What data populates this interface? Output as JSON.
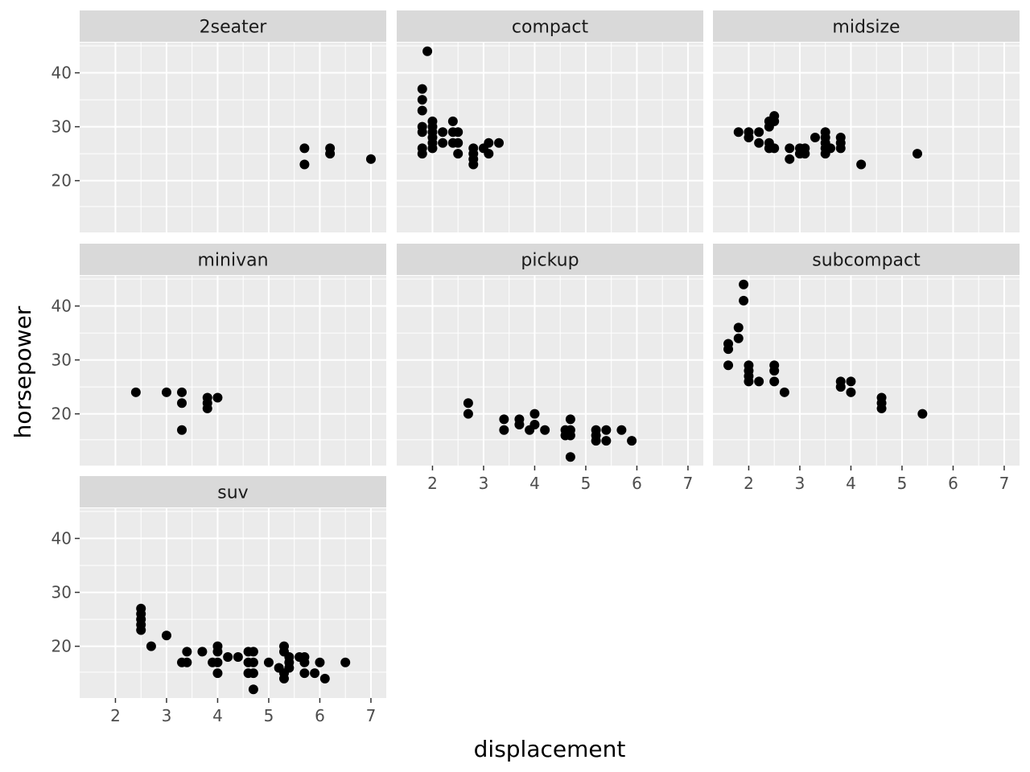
{
  "chart_data": {
    "type": "scatter",
    "facet_by": "class",
    "xlabel": "displacement",
    "ylabel": "horsepower",
    "xlim": [
      1.3,
      7.3
    ],
    "ylim": [
      10.4,
      45.6
    ],
    "x_ticks": [
      2,
      3,
      4,
      5,
      6,
      7
    ],
    "y_ticks": [
      20,
      30,
      40
    ],
    "grid": true,
    "colors": {
      "panel_bg": "#ebebeb",
      "strip_bg": "#d9d9d9",
      "grid": "#ffffff",
      "point": "#000000"
    },
    "panels": [
      {
        "name": "2seater",
        "points": [
          [
            5.7,
            26
          ],
          [
            5.7,
            23
          ],
          [
            6.2,
            26
          ],
          [
            6.2,
            25
          ],
          [
            7.0,
            24
          ]
        ]
      },
      {
        "name": "compact",
        "points": [
          [
            1.9,
            44
          ],
          [
            1.8,
            37
          ],
          [
            1.8,
            35
          ],
          [
            1.8,
            33
          ],
          [
            1.8,
            30
          ],
          [
            1.8,
            29
          ],
          [
            1.8,
            26
          ],
          [
            1.8,
            25
          ],
          [
            2.0,
            31
          ],
          [
            2.0,
            30
          ],
          [
            2.0,
            29
          ],
          [
            2.0,
            28
          ],
          [
            2.0,
            27
          ],
          [
            2.0,
            26
          ],
          [
            2.2,
            29
          ],
          [
            2.2,
            27
          ],
          [
            2.4,
            31
          ],
          [
            2.4,
            29
          ],
          [
            2.4,
            27
          ],
          [
            2.5,
            29
          ],
          [
            2.5,
            27
          ],
          [
            2.5,
            25
          ],
          [
            2.8,
            26
          ],
          [
            2.8,
            25
          ],
          [
            2.8,
            24
          ],
          [
            2.8,
            23
          ],
          [
            3.0,
            26
          ],
          [
            3.1,
            27
          ],
          [
            3.1,
            25
          ],
          [
            3.3,
            27
          ]
        ]
      },
      {
        "name": "midsize",
        "points": [
          [
            1.8,
            29
          ],
          [
            2.0,
            29
          ],
          [
            2.0,
            28
          ],
          [
            2.2,
            29
          ],
          [
            2.2,
            27
          ],
          [
            2.4,
            31
          ],
          [
            2.4,
            30
          ],
          [
            2.4,
            27
          ],
          [
            2.4,
            26
          ],
          [
            2.5,
            32
          ],
          [
            2.5,
            31
          ],
          [
            2.5,
            26
          ],
          [
            2.8,
            26
          ],
          [
            2.8,
            24
          ],
          [
            3.0,
            26
          ],
          [
            3.0,
            25
          ],
          [
            3.1,
            26
          ],
          [
            3.1,
            25
          ],
          [
            3.3,
            28
          ],
          [
            3.5,
            29
          ],
          [
            3.5,
            28
          ],
          [
            3.5,
            27
          ],
          [
            3.5,
            26
          ],
          [
            3.5,
            25
          ],
          [
            3.6,
            26
          ],
          [
            3.8,
            28
          ],
          [
            3.8,
            27
          ],
          [
            3.8,
            26
          ],
          [
            4.2,
            23
          ],
          [
            5.3,
            25
          ]
        ]
      },
      {
        "name": "minivan",
        "points": [
          [
            2.4,
            24
          ],
          [
            3.0,
            24
          ],
          [
            3.3,
            24
          ],
          [
            3.3,
            22
          ],
          [
            3.3,
            17
          ],
          [
            3.8,
            23
          ],
          [
            3.8,
            22
          ],
          [
            3.8,
            21
          ],
          [
            4.0,
            23
          ]
        ]
      },
      {
        "name": "pickup",
        "points": [
          [
            2.7,
            22
          ],
          [
            2.7,
            20
          ],
          [
            3.4,
            19
          ],
          [
            3.4,
            17
          ],
          [
            3.7,
            19
          ],
          [
            3.7,
            18
          ],
          [
            3.9,
            17
          ],
          [
            4.0,
            20
          ],
          [
            4.0,
            18
          ],
          [
            4.2,
            17
          ],
          [
            4.6,
            17
          ],
          [
            4.6,
            16
          ],
          [
            4.7,
            19
          ],
          [
            4.7,
            17
          ],
          [
            4.7,
            16
          ],
          [
            4.7,
            12
          ],
          [
            5.2,
            17
          ],
          [
            5.2,
            16
          ],
          [
            5.2,
            15
          ],
          [
            5.4,
            17
          ],
          [
            5.4,
            15
          ],
          [
            5.7,
            17
          ],
          [
            5.9,
            15
          ]
        ]
      },
      {
        "name": "subcompact",
        "points": [
          [
            1.6,
            33
          ],
          [
            1.6,
            32
          ],
          [
            1.6,
            29
          ],
          [
            1.8,
            36
          ],
          [
            1.8,
            34
          ],
          [
            1.9,
            44
          ],
          [
            1.9,
            41
          ],
          [
            2.0,
            29
          ],
          [
            2.0,
            28
          ],
          [
            2.0,
            27
          ],
          [
            2.0,
            26
          ],
          [
            2.2,
            26
          ],
          [
            2.5,
            29
          ],
          [
            2.5,
            28
          ],
          [
            2.5,
            26
          ],
          [
            2.7,
            24
          ],
          [
            3.8,
            26
          ],
          [
            3.8,
            25
          ],
          [
            4.0,
            26
          ],
          [
            4.0,
            24
          ],
          [
            4.6,
            23
          ],
          [
            4.6,
            22
          ],
          [
            4.6,
            21
          ],
          [
            5.4,
            20
          ]
        ]
      },
      {
        "name": "suv",
        "points": [
          [
            2.5,
            27
          ],
          [
            2.5,
            26
          ],
          [
            2.5,
            25
          ],
          [
            2.5,
            24
          ],
          [
            2.5,
            23
          ],
          [
            2.7,
            20
          ],
          [
            3.0,
            22
          ],
          [
            3.3,
            17
          ],
          [
            3.4,
            19
          ],
          [
            3.4,
            17
          ],
          [
            3.7,
            19
          ],
          [
            3.9,
            17
          ],
          [
            4.0,
            20
          ],
          [
            4.0,
            19
          ],
          [
            4.0,
            17
          ],
          [
            4.0,
            15
          ],
          [
            4.2,
            18
          ],
          [
            4.4,
            18
          ],
          [
            4.6,
            19
          ],
          [
            4.6,
            17
          ],
          [
            4.6,
            15
          ],
          [
            4.7,
            19
          ],
          [
            4.7,
            17
          ],
          [
            4.7,
            15
          ],
          [
            4.7,
            12
          ],
          [
            5.0,
            17
          ],
          [
            5.2,
            16
          ],
          [
            5.3,
            20
          ],
          [
            5.3,
            19
          ],
          [
            5.3,
            15
          ],
          [
            5.3,
            14
          ],
          [
            5.4,
            18
          ],
          [
            5.4,
            17
          ],
          [
            5.4,
            16
          ],
          [
            5.6,
            18
          ],
          [
            5.7,
            18
          ],
          [
            5.7,
            17
          ],
          [
            5.7,
            15
          ],
          [
            5.9,
            15
          ],
          [
            6.0,
            17
          ],
          [
            6.1,
            14
          ],
          [
            6.5,
            17
          ]
        ]
      }
    ]
  }
}
